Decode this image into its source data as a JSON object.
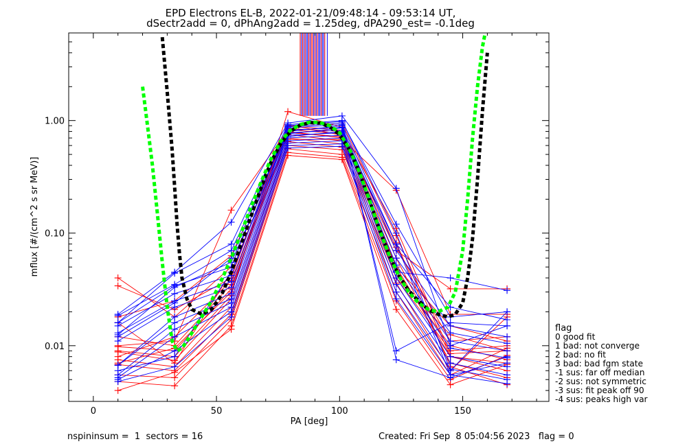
{
  "chart_data": {
    "type": "line",
    "title_line1": "EPD Electrons EL-B, 2022-01-21/09:48:14 - 09:53:14 UT,",
    "title_line2": "dSectr2add = 0, dPhAng2add = 1.25deg, dPA290_est=  -0.1deg",
    "xlabel": "PA [deg]",
    "ylabel": "mflux [#/(cm^2 s sr MeV)]",
    "xlim": [
      -10,
      185
    ],
    "ylim": [
      0.0032,
      6.0
    ],
    "yscale": "log",
    "xticks": [
      0,
      50,
      100,
      150
    ],
    "xtick_labels": [
      "0",
      "50",
      "100",
      "150"
    ],
    "yticks": [
      0.01,
      0.1,
      1.0
    ],
    "ytick_labels": [
      "0.01",
      "0.10",
      "1.00"
    ],
    "colors": {
      "red": "#ff0000",
      "blue": "#0000ff",
      "green": "#00ff00",
      "black": "#000000"
    },
    "pa_points": [
      10,
      33,
      56,
      79,
      101,
      123,
      145,
      168
    ],
    "red_series": [
      [
        0.04,
        0.018,
        0.05,
        0.88,
        0.95,
        0.095,
        0.008,
        0.007
      ],
      [
        0.034,
        0.021,
        0.04,
        0.92,
        0.74,
        0.082,
        0.0065,
        0.0045
      ],
      [
        0.018,
        0.025,
        0.063,
        0.8,
        0.7,
        0.06,
        0.007,
        0.0052
      ],
      [
        0.0098,
        0.009,
        0.032,
        0.75,
        0.66,
        0.05,
        0.008,
        0.006
      ],
      [
        0.0088,
        0.0074,
        0.026,
        0.7,
        0.62,
        0.045,
        0.01,
        0.0075
      ],
      [
        0.0075,
        0.0065,
        0.022,
        0.65,
        0.58,
        0.04,
        0.0125,
        0.009
      ],
      [
        0.0068,
        0.006,
        0.019,
        0.6,
        0.55,
        0.036,
        0.006,
        0.018
      ],
      [
        0.0055,
        0.0052,
        0.017,
        0.56,
        0.5,
        0.03,
        0.0055,
        0.0095
      ],
      [
        0.0048,
        0.0044,
        0.015,
        0.52,
        0.47,
        0.025,
        0.005,
        0.0082
      ],
      [
        0.004,
        0.0058,
        0.014,
        0.49,
        0.45,
        0.021,
        0.0045,
        0.0068
      ],
      [
        0.009,
        0.008,
        0.028,
        1.2,
        0.87,
        0.04,
        0.009,
        0.01
      ],
      [
        0.012,
        0.01,
        0.035,
        0.85,
        0.8,
        0.05,
        0.015,
        0.011
      ],
      [
        0.016,
        0.007,
        0.045,
        0.78,
        0.72,
        0.07,
        0.032,
        0.032
      ],
      [
        0.01,
        0.011,
        0.16,
        0.83,
        0.76,
        0.075,
        0.011,
        0.012
      ],
      [
        0.007,
        0.0095,
        0.03,
        0.9,
        0.82,
        0.11,
        0.0085,
        0.009
      ],
      [
        0.008,
        0.012,
        0.038,
        0.68,
        0.68,
        0.24,
        0.019,
        0.019
      ]
    ],
    "blue_series": [
      [
        0.019,
        0.045,
        0.125,
        0.95,
        1.1,
        0.25,
        0.01,
        0.015
      ],
      [
        0.016,
        0.034,
        0.05,
        0.9,
        0.98,
        0.12,
        0.018,
        0.02
      ],
      [
        0.015,
        0.029,
        0.042,
        0.86,
        0.92,
        0.08,
        0.022,
        0.017
      ],
      [
        0.013,
        0.025,
        0.037,
        0.82,
        0.87,
        0.07,
        0.015,
        0.012
      ],
      [
        0.011,
        0.022,
        0.033,
        0.78,
        0.82,
        0.06,
        0.013,
        0.0105
      ],
      [
        0.0067,
        0.018,
        0.029,
        0.74,
        0.78,
        0.052,
        0.011,
        0.009
      ],
      [
        0.0067,
        0.016,
        0.026,
        0.7,
        0.74,
        0.046,
        0.0095,
        0.0078
      ],
      [
        0.0055,
        0.014,
        0.024,
        0.66,
        0.7,
        0.04,
        0.008,
        0.0065
      ],
      [
        0.0052,
        0.012,
        0.022,
        0.63,
        0.66,
        0.035,
        0.007,
        0.0055
      ],
      [
        0.005,
        0.009,
        0.02,
        0.6,
        0.62,
        0.03,
        0.0062,
        0.005
      ],
      [
        0.0048,
        0.0065,
        0.018,
        0.57,
        0.59,
        0.026,
        0.0055,
        0.0046
      ],
      [
        0.012,
        0.024,
        0.06,
        0.88,
        0.95,
        0.0075,
        0.0052,
        0.008
      ],
      [
        0.0185,
        0.035,
        0.07,
        0.8,
        0.9,
        0.009,
        0.016,
        0.015
      ],
      [
        0.0125,
        0.033,
        0.055,
        0.76,
        0.86,
        0.045,
        0.04,
        0.031
      ],
      [
        0.006,
        0.008,
        0.045,
        0.72,
        0.8,
        0.08,
        0.0055,
        0.007
      ],
      [
        0.016,
        0.044,
        0.08,
        0.92,
        1.0,
        0.1,
        0.006,
        0.02
      ]
    ],
    "green_fit": {
      "x": [
        20,
        22,
        24,
        26,
        28,
        30,
        32,
        34,
        36,
        38,
        40,
        44,
        48,
        52,
        56,
        60,
        64,
        68,
        72,
        76,
        80,
        84,
        88,
        92,
        96,
        100,
        104,
        108,
        112,
        116,
        120,
        124,
        128,
        132,
        136,
        140,
        144,
        147,
        150,
        152,
        154,
        156,
        158,
        159
      ],
      "y": [
        2.0,
        0.9,
        0.4,
        0.15,
        0.055,
        0.022,
        0.011,
        0.009,
        0.0095,
        0.011,
        0.013,
        0.018,
        0.025,
        0.038,
        0.06,
        0.1,
        0.17,
        0.28,
        0.45,
        0.65,
        0.82,
        0.92,
        0.97,
        0.96,
        0.9,
        0.78,
        0.56,
        0.35,
        0.2,
        0.11,
        0.065,
        0.042,
        0.03,
        0.024,
        0.021,
        0.02,
        0.022,
        0.03,
        0.07,
        0.2,
        0.7,
        2.0,
        4.5,
        5.8
      ]
    },
    "black_fit": {
      "x": [
        28,
        30,
        32,
        33,
        34,
        35,
        36,
        38,
        40,
        44,
        48,
        52,
        56,
        60,
        64,
        68,
        72,
        76,
        80,
        84,
        88,
        92,
        96,
        100,
        104,
        108,
        112,
        116,
        120,
        124,
        128,
        132,
        136,
        140,
        144,
        147,
        150,
        152,
        154,
        156,
        158,
        160
      ],
      "y": [
        5.5,
        1.8,
        0.55,
        0.26,
        0.12,
        0.065,
        0.04,
        0.026,
        0.021,
        0.019,
        0.021,
        0.028,
        0.045,
        0.08,
        0.14,
        0.25,
        0.42,
        0.62,
        0.8,
        0.91,
        0.96,
        0.95,
        0.88,
        0.75,
        0.55,
        0.35,
        0.2,
        0.11,
        0.065,
        0.042,
        0.031,
        0.025,
        0.021,
        0.019,
        0.018,
        0.019,
        0.024,
        0.04,
        0.09,
        0.3,
        1.2,
        4.0
      ]
    },
    "saturated_bundle": {
      "ylow": 1.1,
      "red_x": [
        84,
        85,
        86,
        87.5,
        88.5,
        89,
        90,
        91,
        92.5,
        94
      ],
      "blue_x": [
        84.5,
        85.5,
        86.5,
        87,
        88,
        89.5,
        90.5,
        91.5,
        92,
        93,
        93.5,
        95
      ]
    },
    "legend": {
      "title": "flag",
      "items": [
        " 0 good fit",
        " 1 bad: not converge",
        " 2 bad: no fit",
        " 3 bad: bad fgm state",
        "-1 sus: far off median",
        "-2 sus: not symmetric",
        "-3 sus: fit peak off 90",
        "-4 sus: peaks high var"
      ]
    },
    "footer": {
      "left": "nspininsum =  1  sectors = 16",
      "right": "Created: Fri Sep  8 05:04:56 2023   flag = 0"
    }
  }
}
